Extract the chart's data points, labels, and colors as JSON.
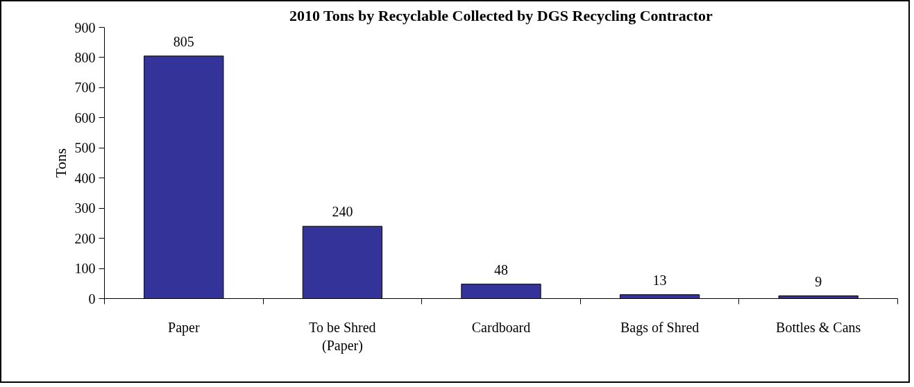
{
  "chart_data": {
    "type": "bar",
    "title": "2010 Tons by Recyclable Collected by DGS Recycling Contractor",
    "ylabel": "Tons",
    "categories": [
      "Paper",
      "To be Shred\n(Paper)",
      "Cardboard",
      "Bags of Shred",
      "Bottles & Cans"
    ],
    "values": [
      805,
      240,
      48,
      13,
      9
    ],
    "color": "#333399",
    "data_labels": true,
    "ylim": [
      0,
      900
    ],
    "yticks": [
      0,
      100,
      200,
      300,
      400,
      500,
      600,
      700,
      800,
      900
    ],
    "grid": false
  }
}
